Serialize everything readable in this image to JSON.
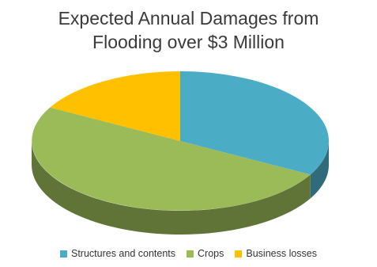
{
  "chart_data": {
    "type": "pie",
    "title_lines": [
      "Expected Annual Damages from",
      "Flooding over $3 Million"
    ],
    "three_d": true,
    "start_angle_deg": 90,
    "direction": "clockwise",
    "slices": [
      {
        "label": "Structures and contents",
        "value": 33,
        "color": "#4BACC6"
      },
      {
        "label": "Crops",
        "value": 50,
        "color": "#9BBB59"
      },
      {
        "label": "Business losses",
        "value": 17,
        "color": "#FFC000"
      }
    ],
    "legend_position": "bottom"
  }
}
